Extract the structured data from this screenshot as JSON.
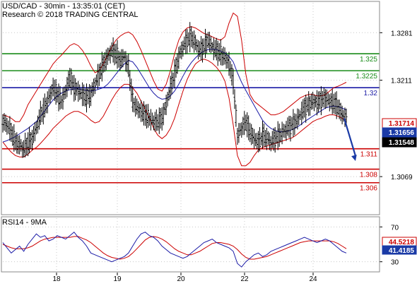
{
  "header": {
    "line1": "USD/CAD - 30min - 13:35:01 (CET)",
    "line2": "Research © 2018 TRADING CENTRAL"
  },
  "colors": {
    "candle": "#000000",
    "bollinger": "#cc0000",
    "ma": "#1a1aa6",
    "resistance": "#1a8c1a",
    "pivot": "#1a1aa6",
    "support": "#cc0000",
    "arrow": "#1a3aa6",
    "rsi": "#1a1aa6",
    "rsi_ma": "#cc0000",
    "grid": "#c8c8c8"
  },
  "chart_data": [
    {
      "type": "candlestick",
      "title": "USD/CAD - 30min - 13:35:01 (CET)",
      "ylim": [
        1.3015,
        1.3325
      ],
      "y_ticks": [
        1.3069,
        1.3211,
        1.3281
      ],
      "y_tick_labels": [
        "1.3069",
        "1.3211",
        "1.3281"
      ],
      "x_ticks": [
        "18",
        "19",
        "20",
        "22",
        "24"
      ],
      "grid": true,
      "levels": [
        {
          "label": "1.325",
          "value": 1.325,
          "kind": "resistance"
        },
        {
          "label": "1.3225",
          "value": 1.3225,
          "kind": "resistance"
        },
        {
          "label": "1.32",
          "value": 1.32,
          "kind": "pivot"
        },
        {
          "label": "1.311",
          "value": 1.311,
          "kind": "support"
        },
        {
          "label": "1.308",
          "value": 1.308,
          "kind": "support"
        },
        {
          "label": "1.306",
          "value": 1.306,
          "kind": "support"
        }
      ],
      "price_boxes": [
        {
          "label": "1.31714",
          "value": 1.31714,
          "style": "red"
        },
        {
          "label": "1.31656",
          "value": 1.31656,
          "style": "blue"
        },
        {
          "label": "1.31548",
          "value": 1.31548,
          "style": "black"
        }
      ],
      "series": [
        {
          "kind": "price",
          "values": [
            1.315,
            1.3145,
            1.3135,
            1.312,
            1.3115,
            1.311,
            1.3118,
            1.3125,
            1.314,
            1.316,
            1.317,
            1.3185,
            1.32,
            1.319,
            1.318,
            1.3195,
            1.3215,
            1.32,
            1.3195,
            1.319,
            1.3185,
            1.319,
            1.3205,
            1.322,
            1.3235,
            1.3245,
            1.3255,
            1.325,
            1.324,
            1.3245,
            1.323,
            1.318,
            1.317,
            1.3165,
            1.316,
            1.3155,
            1.315,
            1.315,
            1.3155,
            1.3175,
            1.32,
            1.322,
            1.3245,
            1.326,
            1.327,
            1.3275,
            1.3265,
            1.3255,
            1.326,
            1.327,
            1.326,
            1.3255,
            1.325,
            1.3245,
            1.3235,
            1.321,
            1.313,
            1.314,
            1.315,
            1.3135,
            1.3125,
            1.312,
            1.313,
            1.3125,
            1.312,
            1.3125,
            1.313,
            1.3135,
            1.314,
            1.3145,
            1.315,
            1.316,
            1.317,
            1.3175,
            1.318,
            1.3178,
            1.3182,
            1.3185,
            1.318,
            1.3178,
            1.3172,
            1.316,
            1.3155
          ]
        },
        {
          "kind": "ma",
          "values": [
            1.312,
            1.3122,
            1.3125,
            1.3128,
            1.3132,
            1.3136,
            1.314,
            1.3145,
            1.315,
            1.3158,
            1.3166,
            1.3174,
            1.3182,
            1.3188,
            1.3192,
            1.3195,
            1.3197,
            1.3198,
            1.3198,
            1.3197,
            1.3196,
            1.3195,
            1.3196,
            1.3198,
            1.32,
            1.3205,
            1.3212,
            1.322,
            1.3228,
            1.3235,
            1.324,
            1.3238,
            1.323,
            1.322,
            1.321,
            1.32,
            1.3192,
            1.3186,
            1.3183,
            1.3184,
            1.3188,
            1.3195,
            1.3205,
            1.3217,
            1.3228,
            1.3237,
            1.3244,
            1.325,
            1.3254,
            1.3256,
            1.3257,
            1.3256,
            1.3254,
            1.3251,
            1.3246,
            1.3238,
            1.3222,
            1.3208,
            1.3196,
            1.3185,
            1.3174,
            1.3163,
            1.3152,
            1.3145,
            1.314,
            1.3137,
            1.3135,
            1.3135,
            1.3136,
            1.3138,
            1.3141,
            1.3145,
            1.315,
            1.3154,
            1.3158,
            1.3162,
            1.3166,
            1.317,
            1.3172,
            1.3173,
            1.3172,
            1.317,
            1.3167
          ]
        },
        {
          "kind": "bollinger_upper",
          "values": [
            1.316,
            1.3158,
            1.3155,
            1.315,
            1.315,
            1.316,
            1.3175,
            1.3185,
            1.3195,
            1.3205,
            1.3215,
            1.3225,
            1.3235,
            1.3242,
            1.3248,
            1.3255,
            1.3262,
            1.3265,
            1.3262,
            1.3255,
            1.3245,
            1.3232,
            1.3222,
            1.3225,
            1.3235,
            1.3248,
            1.326,
            1.327,
            1.3276,
            1.328,
            1.3282,
            1.3278,
            1.3268,
            1.3255,
            1.324,
            1.3225,
            1.321,
            1.3198,
            1.3195,
            1.3205,
            1.3225,
            1.325,
            1.327,
            1.3282,
            1.3288,
            1.329,
            1.3288,
            1.3284,
            1.328,
            1.3278,
            1.3275,
            1.3272,
            1.327,
            1.3275,
            1.3295,
            1.331,
            1.3305,
            1.327,
            1.322,
            1.319,
            1.318,
            1.3175,
            1.317,
            1.3165,
            1.316,
            1.316,
            1.3162,
            1.3165,
            1.317,
            1.3175,
            1.318,
            1.3185,
            1.3188,
            1.319,
            1.319,
            1.3188,
            1.3188,
            1.319,
            1.3195,
            1.32,
            1.3202,
            1.3205,
            1.3208
          ]
        },
        {
          "kind": "bollinger_lower",
          "values": [
            1.312,
            1.3112,
            1.3105,
            1.31,
            1.3098,
            1.3098,
            1.3102,
            1.3108,
            1.3112,
            1.3118,
            1.3125,
            1.3132,
            1.314,
            1.3146,
            1.3152,
            1.3158,
            1.3162,
            1.3165,
            1.3165,
            1.3162,
            1.3158,
            1.3152,
            1.3148,
            1.315,
            1.3158,
            1.317,
            1.3182,
            1.3192,
            1.32,
            1.3205,
            1.3205,
            1.32,
            1.3192,
            1.318,
            1.3168,
            1.3155,
            1.314,
            1.313,
            1.3125,
            1.313,
            1.314,
            1.3155,
            1.3175,
            1.3195,
            1.3212,
            1.3225,
            1.3235,
            1.324,
            1.3242,
            1.324,
            1.3236,
            1.323,
            1.3222,
            1.321,
            1.3185,
            1.3145,
            1.31,
            1.3085,
            1.3085,
            1.309,
            1.31,
            1.3108,
            1.3112,
            1.3114,
            1.3116,
            1.3118,
            1.312,
            1.3122,
            1.3124,
            1.3126,
            1.313,
            1.3135,
            1.314,
            1.3145,
            1.315,
            1.3153,
            1.3155,
            1.3158,
            1.316,
            1.316,
            1.3158,
            1.3155,
            1.315
          ]
        }
      ],
      "forecast_arrow": {
        "from": 1.3155,
        "to": 1.3092
      }
    },
    {
      "type": "line",
      "title": "RSI14 - 9MA",
      "ylim": [
        20,
        80
      ],
      "y_ticks": [
        30,
        70
      ],
      "y_tick_labels": [
        "30",
        "70"
      ],
      "grid": true,
      "value_boxes": [
        {
          "label": "44.5218",
          "value": 44.5218,
          "style": "red"
        },
        {
          "label": "41.4185",
          "value": 41.4185,
          "style": "blue"
        }
      ],
      "series": [
        {
          "kind": "rsi",
          "values": [
            52,
            46,
            40,
            44,
            48,
            42,
            50,
            56,
            62,
            58,
            60,
            54,
            56,
            60,
            58,
            56,
            60,
            64,
            58,
            54,
            48,
            40,
            38,
            36,
            34,
            32,
            30,
            32,
            34,
            36,
            40,
            48,
            56,
            62,
            64,
            60,
            58,
            54,
            48,
            44,
            40,
            38,
            36,
            34,
            36,
            40,
            44,
            48,
            52,
            54,
            56,
            52,
            50,
            48,
            46,
            42,
            28,
            24,
            30,
            34,
            38,
            40,
            36,
            38,
            42,
            44,
            46,
            48,
            50,
            52,
            54,
            56,
            58,
            56,
            54,
            52,
            54,
            56,
            54,
            50,
            46,
            42,
            40
          ]
        },
        {
          "kind": "rsi_ma",
          "values": [
            50,
            48,
            46,
            45,
            45,
            45,
            46,
            48,
            51,
            54,
            56,
            57,
            58,
            58,
            58,
            58,
            58,
            59,
            59,
            57,
            55,
            52,
            48,
            44,
            40,
            37,
            35,
            34,
            33,
            34,
            36,
            40,
            45,
            50,
            55,
            58,
            59,
            58,
            56,
            53,
            49,
            45,
            42,
            40,
            38,
            38,
            40,
            42,
            45,
            48,
            51,
            52,
            52,
            51,
            50,
            48,
            44,
            39,
            35,
            33,
            33,
            34,
            35,
            36,
            38,
            40,
            42,
            44,
            46,
            48,
            50,
            52,
            53,
            54,
            54,
            54,
            54,
            54,
            54,
            53,
            51,
            48,
            45
          ]
        }
      ]
    }
  ]
}
